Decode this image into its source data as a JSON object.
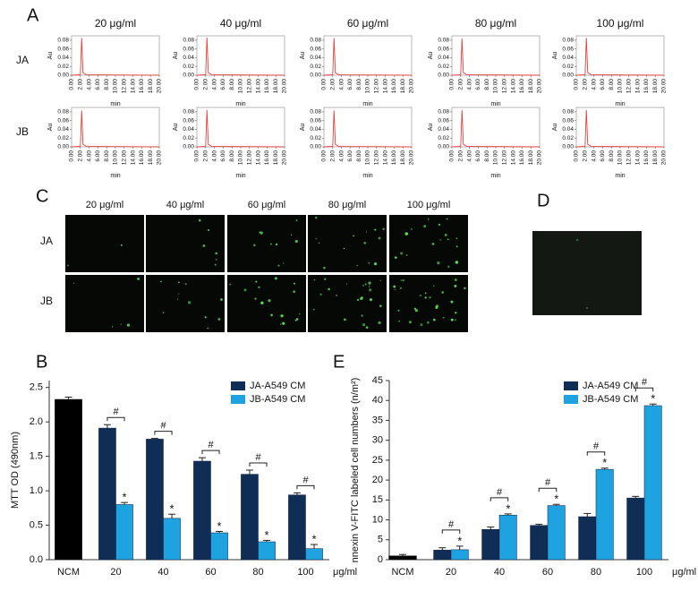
{
  "panel_labels": [
    "A",
    "B",
    "C",
    "D",
    "E"
  ],
  "panel_a": {
    "columns": [
      "20 μg/ml",
      "40 μg/ml",
      "60 μg/ml",
      "80 μg/ml",
      "100 μg/ml"
    ],
    "rows": [
      "JA",
      "JB"
    ]
  },
  "panel_c": {
    "columns": [
      "20 μg/ml",
      "40 μg/ml",
      "60 μg/ml",
      "80 μg/ml",
      "100 μg/ml"
    ],
    "rows": [
      "JA",
      "JB"
    ]
  },
  "chart_data": [
    {
      "type": "line",
      "xlabel": "min",
      "ylabel": "Au",
      "xlim": [
        0,
        20
      ],
      "ylim": [
        0,
        0.09
      ],
      "color": "#e8413c",
      "x": [
        0,
        2.0,
        2.3,
        2.6,
        3.4,
        20
      ],
      "values": [
        0,
        0.001,
        0.085,
        0.006,
        0.001,
        0
      ],
      "xticks": [
        {
          "value": 0,
          "label": "0.00"
        },
        {
          "value": 2,
          "label": "2.00"
        },
        {
          "value": 4,
          "label": "4.00"
        },
        {
          "value": 6,
          "label": "6.00"
        },
        {
          "value": 8,
          "label": "8.00"
        },
        {
          "value": 10,
          "label": "10.00"
        },
        {
          "value": 12,
          "label": "12.00"
        },
        {
          "value": 14,
          "label": "14.00"
        },
        {
          "value": 16,
          "label": "16.00"
        },
        {
          "value": 18,
          "label": "18.00"
        },
        {
          "value": 20,
          "label": "20.00"
        }
      ],
      "yticks": [
        {
          "value": 0,
          "label": "0.00"
        },
        {
          "value": 0.02,
          "label": "0.02"
        },
        {
          "value": 0.04,
          "label": "0.04"
        },
        {
          "value": 0.06,
          "label": "0.06"
        },
        {
          "value": 0.08,
          "label": "0.08"
        }
      ]
    },
    {
      "type": "line",
      "xlabel": "min",
      "ylabel": "Au",
      "xlim": [
        0,
        20
      ],
      "ylim": [
        0,
        0.09
      ],
      "color": "#e8413c",
      "x": [
        0,
        2.0,
        2.3,
        2.6,
        3.4,
        20
      ],
      "values": [
        0,
        0.001,
        0.086,
        0.006,
        0.001,
        0
      ],
      "xticks": [
        {
          "value": 0,
          "label": "0.00"
        },
        {
          "value": 2,
          "label": "2.00"
        },
        {
          "value": 4,
          "label": "4.00"
        },
        {
          "value": 6,
          "label": "6.00"
        },
        {
          "value": 8,
          "label": "8.00"
        },
        {
          "value": 10,
          "label": "10.00"
        },
        {
          "value": 12,
          "label": "12.00"
        },
        {
          "value": 14,
          "label": "14.00"
        },
        {
          "value": 16,
          "label": "16.00"
        },
        {
          "value": 18,
          "label": "18.00"
        },
        {
          "value": 20,
          "label": "20.00"
        }
      ],
      "yticks": [
        {
          "value": 0,
          "label": "0.00"
        },
        {
          "value": 0.02,
          "label": "0.02"
        },
        {
          "value": 0.04,
          "label": "0.04"
        },
        {
          "value": 0.06,
          "label": "0.06"
        },
        {
          "value": 0.08,
          "label": "0.08"
        }
      ]
    },
    {
      "type": "line",
      "xlabel": "min",
      "ylabel": "Au",
      "xlim": [
        0,
        20
      ],
      "ylim": [
        0,
        0.09
      ],
      "color": "#e8413c",
      "x": [
        0,
        2.0,
        2.3,
        2.6,
        3.4,
        20
      ],
      "values": [
        0,
        0.001,
        0.085,
        0.006,
        0.001,
        0
      ],
      "xticks": [
        {
          "value": 0,
          "label": "0.00"
        },
        {
          "value": 2,
          "label": "2.00"
        },
        {
          "value": 4,
          "label": "4.00"
        },
        {
          "value": 6,
          "label": "6.00"
        },
        {
          "value": 8,
          "label": "8.00"
        },
        {
          "value": 10,
          "label": "10.00"
        },
        {
          "value": 12,
          "label": "12.00"
        },
        {
          "value": 14,
          "label": "14.00"
        },
        {
          "value": 16,
          "label": "16.00"
        },
        {
          "value": 18,
          "label": "18.00"
        },
        {
          "value": 20,
          "label": "20.00"
        }
      ],
      "yticks": [
        {
          "value": 0,
          "label": "0.00"
        },
        {
          "value": 0.02,
          "label": "0.02"
        },
        {
          "value": 0.04,
          "label": "0.04"
        },
        {
          "value": 0.06,
          "label": "0.06"
        },
        {
          "value": 0.08,
          "label": "0.08"
        }
      ]
    },
    {
      "type": "line",
      "xlabel": "min",
      "ylabel": "Au",
      "xlim": [
        0,
        20
      ],
      "ylim": [
        0,
        0.09
      ],
      "color": "#e8413c",
      "x": [
        0,
        2.0,
        2.3,
        2.6,
        3.4,
        20
      ],
      "values": [
        0,
        0.001,
        0.084,
        0.006,
        0.001,
        0
      ],
      "xticks": [
        {
          "value": 0,
          "label": "0.00"
        },
        {
          "value": 2,
          "label": "2.00"
        },
        {
          "value": 4,
          "label": "4.00"
        },
        {
          "value": 6,
          "label": "6.00"
        },
        {
          "value": 8,
          "label": "8.00"
        },
        {
          "value": 10,
          "label": "10.00"
        },
        {
          "value": 12,
          "label": "12.00"
        },
        {
          "value": 14,
          "label": "14.00"
        },
        {
          "value": 16,
          "label": "16.00"
        },
        {
          "value": 18,
          "label": "18.00"
        },
        {
          "value": 20,
          "label": "20.00"
        }
      ],
      "yticks": [
        {
          "value": 0,
          "label": "0.00"
        },
        {
          "value": 0.02,
          "label": "0.02"
        },
        {
          "value": 0.04,
          "label": "0.04"
        },
        {
          "value": 0.06,
          "label": "0.06"
        },
        {
          "value": 0.08,
          "label": "0.08"
        }
      ]
    },
    {
      "type": "line",
      "xlabel": "min",
      "ylabel": "Au",
      "xlim": [
        0,
        20
      ],
      "ylim": [
        0,
        0.09
      ],
      "color": "#e8413c",
      "x": [
        0,
        2.0,
        2.3,
        2.6,
        3.4,
        20
      ],
      "values": [
        0,
        0.001,
        0.085,
        0.006,
        0.001,
        0
      ],
      "xticks": [
        {
          "value": 0,
          "label": "0.00"
        },
        {
          "value": 2,
          "label": "2.00"
        },
        {
          "value": 4,
          "label": "4.00"
        },
        {
          "value": 6,
          "label": "6.00"
        },
        {
          "value": 8,
          "label": "8.00"
        },
        {
          "value": 10,
          "label": "10.00"
        },
        {
          "value": 12,
          "label": "12.00"
        },
        {
          "value": 14,
          "label": "14.00"
        },
        {
          "value": 16,
          "label": "16.00"
        },
        {
          "value": 18,
          "label": "18.00"
        },
        {
          "value": 20,
          "label": "20.00"
        }
      ],
      "yticks": [
        {
          "value": 0,
          "label": "0.00"
        },
        {
          "value": 0.02,
          "label": "0.02"
        },
        {
          "value": 0.04,
          "label": "0.04"
        },
        {
          "value": 0.06,
          "label": "0.06"
        },
        {
          "value": 0.08,
          "label": "0.08"
        }
      ]
    },
    {
      "type": "line",
      "xlabel": "min",
      "ylabel": "Au",
      "xlim": [
        0,
        20
      ],
      "ylim": [
        0,
        0.09
      ],
      "color": "#e8413c",
      "x": [
        0,
        2.0,
        2.3,
        2.6,
        3.4,
        20
      ],
      "values": [
        0,
        0.001,
        0.083,
        0.006,
        0.001,
        0
      ],
      "xticks": [
        {
          "value": 0,
          "label": "0.00"
        },
        {
          "value": 2,
          "label": "2.00"
        },
        {
          "value": 4,
          "label": "4.00"
        },
        {
          "value": 6,
          "label": "6.00"
        },
        {
          "value": 8,
          "label": "8.00"
        },
        {
          "value": 10,
          "label": "10.00"
        },
        {
          "value": 12,
          "label": "12.00"
        },
        {
          "value": 14,
          "label": "14.00"
        },
        {
          "value": 16,
          "label": "16.00"
        },
        {
          "value": 18,
          "label": "18.00"
        },
        {
          "value": 20,
          "label": "20.00"
        }
      ],
      "yticks": [
        {
          "value": 0,
          "label": "0.00"
        },
        {
          "value": 0.02,
          "label": "0.02"
        },
        {
          "value": 0.04,
          "label": "0.04"
        },
        {
          "value": 0.06,
          "label": "0.06"
        },
        {
          "value": 0.08,
          "label": "0.08"
        }
      ]
    },
    {
      "type": "line",
      "xlabel": "min",
      "ylabel": "Au",
      "xlim": [
        0,
        20
      ],
      "ylim": [
        0,
        0.09
      ],
      "color": "#e8413c",
      "x": [
        0,
        2.0,
        2.3,
        2.6,
        3.4,
        20
      ],
      "values": [
        0,
        0.001,
        0.084,
        0.006,
        0.001,
        0
      ],
      "xticks": [
        {
          "value": 0,
          "label": "0.00"
        },
        {
          "value": 2,
          "label": "2.00"
        },
        {
          "value": 4,
          "label": "4.00"
        },
        {
          "value": 6,
          "label": "6.00"
        },
        {
          "value": 8,
          "label": "8.00"
        },
        {
          "value": 10,
          "label": "10.00"
        },
        {
          "value": 12,
          "label": "12.00"
        },
        {
          "value": 14,
          "label": "14.00"
        },
        {
          "value": 16,
          "label": "16.00"
        },
        {
          "value": 18,
          "label": "18.00"
        },
        {
          "value": 20,
          "label": "20.00"
        }
      ],
      "yticks": [
        {
          "value": 0,
          "label": "0.00"
        },
        {
          "value": 0.02,
          "label": "0.02"
        },
        {
          "value": 0.04,
          "label": "0.04"
        },
        {
          "value": 0.06,
          "label": "0.06"
        },
        {
          "value": 0.08,
          "label": "0.08"
        }
      ]
    },
    {
      "type": "line",
      "xlabel": "min",
      "ylabel": "Au",
      "xlim": [
        0,
        20
      ],
      "ylim": [
        0,
        0.09
      ],
      "color": "#e8413c",
      "x": [
        0,
        2.0,
        2.3,
        2.6,
        3.4,
        20
      ],
      "values": [
        0,
        0.001,
        0.083,
        0.006,
        0.001,
        0
      ],
      "xticks": [
        {
          "value": 0,
          "label": "0.00"
        },
        {
          "value": 2,
          "label": "2.00"
        },
        {
          "value": 4,
          "label": "4.00"
        },
        {
          "value": 6,
          "label": "6.00"
        },
        {
          "value": 8,
          "label": "8.00"
        },
        {
          "value": 10,
          "label": "10.00"
        },
        {
          "value": 12,
          "label": "12.00"
        },
        {
          "value": 14,
          "label": "14.00"
        },
        {
          "value": 16,
          "label": "16.00"
        },
        {
          "value": 18,
          "label": "18.00"
        },
        {
          "value": 20,
          "label": "20.00"
        }
      ],
      "yticks": [
        {
          "value": 0,
          "label": "0.00"
        },
        {
          "value": 0.02,
          "label": "0.02"
        },
        {
          "value": 0.04,
          "label": "0.04"
        },
        {
          "value": 0.06,
          "label": "0.06"
        },
        {
          "value": 0.08,
          "label": "0.08"
        }
      ]
    },
    {
      "type": "line",
      "xlabel": "min",
      "ylabel": "Au",
      "xlim": [
        0,
        20
      ],
      "ylim": [
        0,
        0.09
      ],
      "color": "#e8413c",
      "x": [
        0,
        2.0,
        2.3,
        2.6,
        3.4,
        20
      ],
      "values": [
        0,
        0.001,
        0.084,
        0.006,
        0.001,
        0
      ],
      "xticks": [
        {
          "value": 0,
          "label": "0.00"
        },
        {
          "value": 2,
          "label": "2.00"
        },
        {
          "value": 4,
          "label": "4.00"
        },
        {
          "value": 6,
          "label": "6.00"
        },
        {
          "value": 8,
          "label": "8.00"
        },
        {
          "value": 10,
          "label": "10.00"
        },
        {
          "value": 12,
          "label": "12.00"
        },
        {
          "value": 14,
          "label": "14.00"
        },
        {
          "value": 16,
          "label": "16.00"
        },
        {
          "value": 18,
          "label": "18.00"
        },
        {
          "value": 20,
          "label": "20.00"
        }
      ],
      "yticks": [
        {
          "value": 0,
          "label": "0.00"
        },
        {
          "value": 0.02,
          "label": "0.02"
        },
        {
          "value": 0.04,
          "label": "0.04"
        },
        {
          "value": 0.06,
          "label": "0.06"
        },
        {
          "value": 0.08,
          "label": "0.08"
        }
      ]
    },
    {
      "type": "line",
      "xlabel": "min",
      "ylabel": "Au",
      "xlim": [
        0,
        20
      ],
      "ylim": [
        0,
        0.09
      ],
      "color": "#e8413c",
      "x": [
        0,
        2.0,
        2.3,
        2.6,
        3.4,
        20
      ],
      "values": [
        0,
        0.001,
        0.084,
        0.006,
        0.001,
        0
      ],
      "xticks": [
        {
          "value": 0,
          "label": "0.00"
        },
        {
          "value": 2,
          "label": "2.00"
        },
        {
          "value": 4,
          "label": "4.00"
        },
        {
          "value": 6,
          "label": "6.00"
        },
        {
          "value": 8,
          "label": "8.00"
        },
        {
          "value": 10,
          "label": "10.00"
        },
        {
          "value": 12,
          "label": "12.00"
        },
        {
          "value": 14,
          "label": "14.00"
        },
        {
          "value": 16,
          "label": "16.00"
        },
        {
          "value": 18,
          "label": "18.00"
        },
        {
          "value": 20,
          "label": "20.00"
        }
      ],
      "yticks": [
        {
          "value": 0,
          "label": "0.00"
        },
        {
          "value": 0.02,
          "label": "0.02"
        },
        {
          "value": 0.04,
          "label": "0.04"
        },
        {
          "value": 0.06,
          "label": "0.06"
        },
        {
          "value": 0.08,
          "label": "0.08"
        }
      ]
    },
    {
      "type": "bar",
      "ylabel": "MTT OD (490nm)",
      "categories": [
        "NCM",
        "20",
        "40",
        "60",
        "80",
        "100"
      ],
      "x_unit": "μg/ml",
      "ylim": [
        0,
        2.6
      ],
      "yticks": [
        {
          "value": 0,
          "label": "0.0"
        },
        0.5,
        {
          "value": 1,
          "label": "1.0"
        },
        1.5,
        {
          "value": 2,
          "label": "2.0"
        },
        2.5
      ],
      "legend": "top-right",
      "control": {
        "color": "#000000",
        "values": [
          2.33,
          null,
          null,
          null,
          null,
          null
        ],
        "errors": [
          0.03,
          null,
          null,
          null,
          null,
          null
        ]
      },
      "series": [
        {
          "name": "JA-A549 CM",
          "color": "#0f2d55",
          "values": [
            null,
            1.91,
            1.75,
            1.43,
            1.24,
            0.94
          ],
          "errors": [
            null,
            0.05,
            0.01,
            0.05,
            0.06,
            0.03
          ]
        },
        {
          "name": "JB-A549 CM",
          "color": "#1fa3e0",
          "values": [
            null,
            0.8,
            0.6,
            0.39,
            0.26,
            0.16
          ],
          "errors": [
            null,
            0.03,
            0.06,
            0.02,
            0.02,
            0.06
          ]
        }
      ],
      "marks": {
        "between_groups": "#",
        "versus_control": "*"
      }
    },
    {
      "type": "bar",
      "ylabel": "nnexin V-FITC labeled cell numbers (n/m²)",
      "categories": [
        "NCM",
        "20",
        "40",
        "60",
        "80",
        "100"
      ],
      "x_unit": "μg/ml",
      "ylim": [
        0,
        45
      ],
      "yticks": [
        0,
        5,
        10,
        15,
        20,
        25,
        30,
        35,
        40,
        45
      ],
      "legend": "top-right",
      "control": {
        "color": "#000000",
        "values": [
          1.0,
          null,
          null,
          null,
          null,
          null
        ],
        "errors": [
          0.3,
          null,
          null,
          null,
          null,
          null
        ]
      },
      "series": [
        {
          "name": "JA-A549 CM",
          "color": "#0f2d55",
          "values": [
            null,
            2.4,
            7.6,
            8.6,
            10.8,
            15.5
          ],
          "errors": [
            null,
            0.6,
            0.6,
            0.3,
            0.8,
            0.4
          ]
        },
        {
          "name": "JB-A549 CM",
          "color": "#1fa3e0",
          "values": [
            null,
            2.5,
            11.2,
            13.6,
            22.7,
            38.7
          ],
          "errors": [
            null,
            0.9,
            0.3,
            0.3,
            0.3,
            0.4
          ]
        }
      ],
      "marks": {
        "between_groups": "#",
        "versus_control": "*"
      }
    }
  ]
}
